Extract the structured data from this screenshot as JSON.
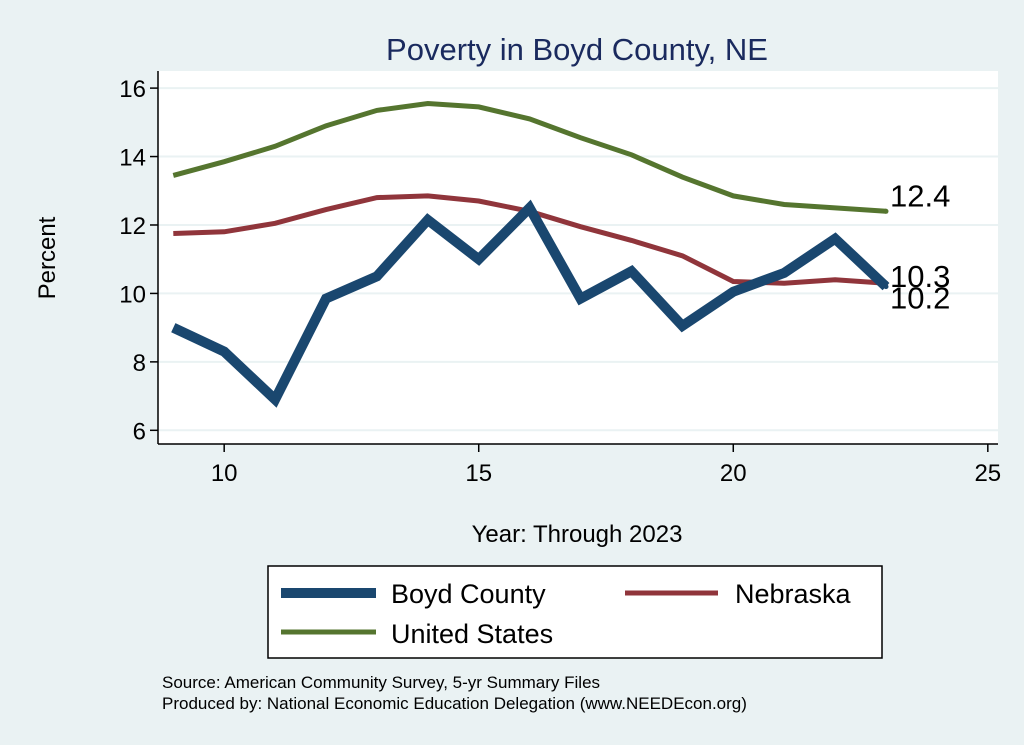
{
  "chart_data": {
    "type": "line",
    "title": "Poverty in Boyd County, NE",
    "xlabel": "Year: Through 2023",
    "ylabel": "Percent",
    "xlim": [
      8.7,
      25.2
    ],
    "ylim": [
      5.6,
      16.5
    ],
    "xticks": [
      10,
      15,
      20,
      25
    ],
    "yticks": [
      6,
      8,
      10,
      12,
      14,
      16
    ],
    "grid": true,
    "legend_position": "bottom",
    "series": [
      {
        "name": "Boyd County",
        "color": "#1a476f",
        "x": [
          9,
          10,
          11,
          12,
          13,
          14,
          15,
          16,
          17,
          18,
          19,
          20,
          21,
          22,
          23
        ],
        "values": [
          9.0,
          8.3,
          6.9,
          9.85,
          10.5,
          12.15,
          11.0,
          12.5,
          9.85,
          10.65,
          9.05,
          10.05,
          10.6,
          11.6,
          10.2
        ],
        "end_label": "10.2"
      },
      {
        "name": "Nebraska",
        "color": "#90353b",
        "x": [
          9,
          10,
          11,
          12,
          13,
          14,
          15,
          16,
          17,
          18,
          19,
          20,
          21,
          22,
          23
        ],
        "values": [
          11.75,
          11.8,
          12.05,
          12.45,
          12.8,
          12.85,
          12.7,
          12.4,
          11.95,
          11.55,
          11.1,
          10.35,
          10.3,
          10.4,
          10.3
        ],
        "end_label": "10.3"
      },
      {
        "name": "United States",
        "color": "#55752f",
        "x": [
          9,
          10,
          11,
          12,
          13,
          14,
          15,
          16,
          17,
          18,
          19,
          20,
          21,
          22,
          23
        ],
        "values": [
          13.45,
          13.85,
          14.3,
          14.9,
          15.35,
          15.55,
          15.45,
          15.1,
          14.55,
          14.05,
          13.4,
          12.85,
          12.6,
          12.5,
          12.4
        ],
        "end_label": "12.4"
      }
    ],
    "legend": [
      "Boyd County",
      "Nebraska",
      "United States"
    ],
    "source_lines": [
      "Source: American Community Survey, 5-yr Summary Files",
      "Produced by: National Economic Education Delegation (www.NEEDEcon.org)"
    ]
  }
}
